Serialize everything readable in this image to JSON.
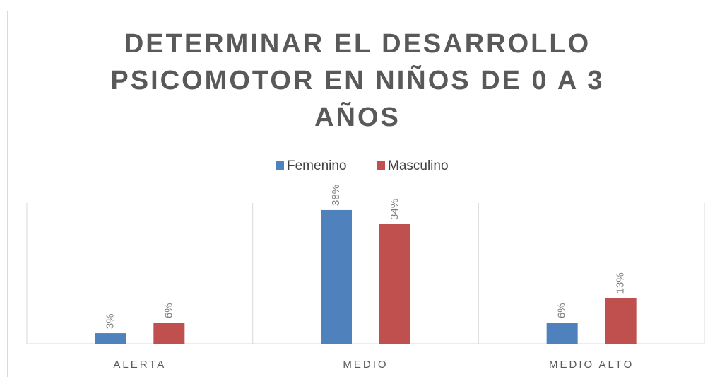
{
  "chart_data": {
    "type": "bar",
    "title": "DETERMINAR EL  DESARROLLO\nPSICOMOTOR EN NIÑOS DE 0 A 3\nAÑOS",
    "categories": [
      "ALERTA",
      "MEDIO",
      "MEDIO ALTO"
    ],
    "series": [
      {
        "name": "Femenino",
        "color": "#4f81bd",
        "values": [
          3,
          38,
          6
        ],
        "value_labels": [
          "3%",
          "38%",
          "6%"
        ]
      },
      {
        "name": "Masculino",
        "color": "#c0504d",
        "values": [
          6,
          34,
          13
        ],
        "value_labels": [
          "6%",
          "34%",
          "13%"
        ]
      }
    ],
    "ylim": [
      0,
      40
    ],
    "legend": "top"
  }
}
